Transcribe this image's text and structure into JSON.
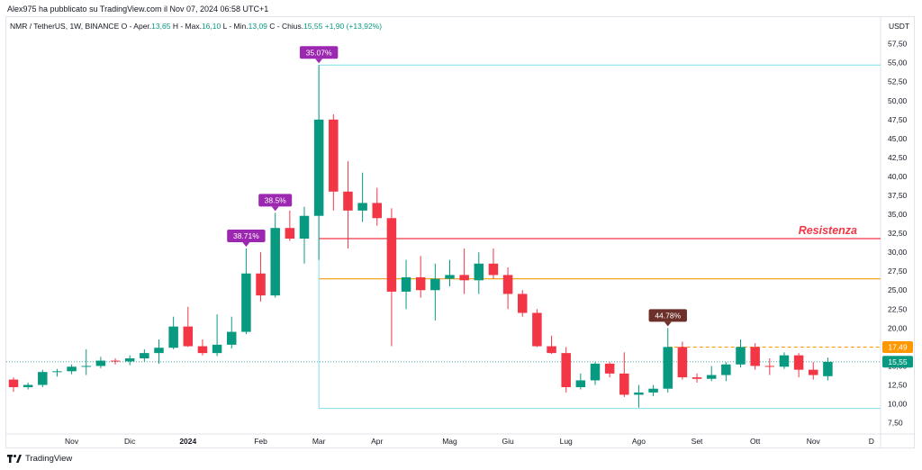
{
  "publisher": "Alex975 ha pubblicato su TradingView.com il Nov 07, 2024 06:58 UTC+1",
  "header": {
    "symbol": "NMR / TetherUS, 1W, BINANCE",
    "open_label": "O - Aper.",
    "open": "13,65",
    "high_label": "H - Max.",
    "high": "16,10",
    "low_label": "L - Min.",
    "low": "13,09",
    "close_label": "C - Chius.",
    "close": "15,55",
    "change": "+1,90 (+13,92%)"
  },
  "footer": {
    "brand": "TradingView"
  },
  "colors": {
    "up": "#089981",
    "down": "#f23645",
    "resistance": "#f23645",
    "orange_line": "#f5a623",
    "cyan_line": "#80deea",
    "label_purple": "#9c27b0",
    "label_brown": "#6d2f2a",
    "price_tag_current": "#089981",
    "price_tag_dashed": "#ff9800"
  },
  "chart_data": {
    "type": "candlestick",
    "ylabel": "USDT",
    "ylim": [
      6.5,
      59
    ],
    "y_ticks": [
      7.5,
      10,
      12.5,
      15,
      17.5,
      20,
      22.5,
      25,
      27.5,
      30,
      32.5,
      35,
      37.5,
      40,
      42.5,
      45,
      47.5,
      50,
      52.5,
      55,
      57.5
    ],
    "y_tick_labels": [
      "7,50",
      "10,00",
      "12,50",
      "15,00",
      "17,50",
      "20,00",
      "22,50",
      "25,00",
      "27,50",
      "30,00",
      "32,50",
      "35,00",
      "37,50",
      "40,00",
      "42,50",
      "45,00",
      "47,50",
      "50,00",
      "52,50",
      "55,00",
      "57,50"
    ],
    "x_labels": [
      {
        "label": "Nov",
        "index": 4
      },
      {
        "label": "Dic",
        "index": 8
      },
      {
        "label": "2024",
        "index": 12
      },
      {
        "label": "Feb",
        "index": 17
      },
      {
        "label": "Mar",
        "index": 21
      },
      {
        "label": "Apr",
        "index": 25
      },
      {
        "label": "Mag",
        "index": 30
      },
      {
        "label": "Giu",
        "index": 34
      },
      {
        "label": "Lug",
        "index": 38
      },
      {
        "label": "Ago",
        "index": 43
      },
      {
        "label": "Set",
        "index": 47
      },
      {
        "label": "Ott",
        "index": 51
      },
      {
        "label": "Nov",
        "index": 55
      },
      {
        "label": "D",
        "index": 59
      }
    ],
    "candles": [
      {
        "o": 13.2,
        "h": 13.5,
        "l": 11.6,
        "c": 12.2
      },
      {
        "o": 12.2,
        "h": 12.8,
        "l": 11.9,
        "c": 12.5
      },
      {
        "o": 12.5,
        "h": 14.5,
        "l": 12.2,
        "c": 14.2
      },
      {
        "o": 14.2,
        "h": 14.6,
        "l": 13.6,
        "c": 14.3
      },
      {
        "o": 14.3,
        "h": 15.2,
        "l": 13.9,
        "c": 14.9
      },
      {
        "o": 14.9,
        "h": 17.2,
        "l": 13.8,
        "c": 15.0
      },
      {
        "o": 15.0,
        "h": 16.2,
        "l": 14.7,
        "c": 15.7
      },
      {
        "o": 15.7,
        "h": 16.0,
        "l": 15.2,
        "c": 15.6
      },
      {
        "o": 15.6,
        "h": 16.4,
        "l": 15.1,
        "c": 16.0
      },
      {
        "o": 16.0,
        "h": 17.2,
        "l": 15.6,
        "c": 16.7
      },
      {
        "o": 16.7,
        "h": 18.5,
        "l": 15.3,
        "c": 17.4
      },
      {
        "o": 17.4,
        "h": 21.5,
        "l": 17.2,
        "c": 20.2
      },
      {
        "o": 20.2,
        "h": 22.8,
        "l": 17.5,
        "c": 17.6
      },
      {
        "o": 17.6,
        "h": 18.5,
        "l": 16.4,
        "c": 16.7
      },
      {
        "o": 16.7,
        "h": 21.8,
        "l": 16.3,
        "c": 17.8
      },
      {
        "o": 17.8,
        "h": 21.5,
        "l": 17.3,
        "c": 19.5
      },
      {
        "o": 19.5,
        "h": 30.5,
        "l": 19.2,
        "c": 27.2
      },
      {
        "o": 27.2,
        "h": 30.0,
        "l": 23.5,
        "c": 24.3
      },
      {
        "o": 24.3,
        "h": 35.2,
        "l": 24.0,
        "c": 33.2
      },
      {
        "o": 33.2,
        "h": 35.5,
        "l": 31.5,
        "c": 31.8
      },
      {
        "o": 31.8,
        "h": 36.0,
        "l": 28.5,
        "c": 34.8
      },
      {
        "o": 34.8,
        "h": 54.7,
        "l": 29.0,
        "c": 47.5
      },
      {
        "o": 47.5,
        "h": 48.2,
        "l": 35.5,
        "c": 38.0
      },
      {
        "o": 38.0,
        "h": 42.0,
        "l": 30.5,
        "c": 35.5
      },
      {
        "o": 35.5,
        "h": 40.5,
        "l": 34.0,
        "c": 36.5
      },
      {
        "o": 36.5,
        "h": 38.5,
        "l": 33.5,
        "c": 34.5
      },
      {
        "o": 34.5,
        "h": 35.8,
        "l": 17.6,
        "c": 24.8
      },
      {
        "o": 24.8,
        "h": 29.0,
        "l": 22.5,
        "c": 26.7
      },
      {
        "o": 26.7,
        "h": 29.5,
        "l": 24.0,
        "c": 25.0
      },
      {
        "o": 25.0,
        "h": 28.5,
        "l": 21.0,
        "c": 26.5
      },
      {
        "o": 26.5,
        "h": 29.0,
        "l": 25.5,
        "c": 27.0
      },
      {
        "o": 27.0,
        "h": 30.5,
        "l": 24.5,
        "c": 26.3
      },
      {
        "o": 26.3,
        "h": 30.0,
        "l": 24.5,
        "c": 28.5
      },
      {
        "o": 28.5,
        "h": 30.5,
        "l": 26.5,
        "c": 27.0
      },
      {
        "o": 27.0,
        "h": 28.0,
        "l": 22.5,
        "c": 24.5
      },
      {
        "o": 24.5,
        "h": 25.0,
        "l": 21.5,
        "c": 22.0
      },
      {
        "o": 22.0,
        "h": 22.5,
        "l": 17.5,
        "c": 17.6
      },
      {
        "o": 17.6,
        "h": 19.0,
        "l": 16.6,
        "c": 16.7
      },
      {
        "o": 16.7,
        "h": 17.5,
        "l": 11.5,
        "c": 12.2
      },
      {
        "o": 12.2,
        "h": 14.0,
        "l": 11.9,
        "c": 13.1
      },
      {
        "o": 13.1,
        "h": 15.5,
        "l": 12.5,
        "c": 15.3
      },
      {
        "o": 15.3,
        "h": 15.5,
        "l": 13.5,
        "c": 14.0
      },
      {
        "o": 14.0,
        "h": 16.8,
        "l": 10.9,
        "c": 11.2
      },
      {
        "o": 11.2,
        "h": 12.5,
        "l": 9.5,
        "c": 11.5
      },
      {
        "o": 11.5,
        "h": 12.5,
        "l": 11.0,
        "c": 12.0
      },
      {
        "o": 12.0,
        "h": 20.0,
        "l": 11.5,
        "c": 17.5
      },
      {
        "o": 17.5,
        "h": 18.2,
        "l": 13.2,
        "c": 13.5
      },
      {
        "o": 13.5,
        "h": 14.0,
        "l": 12.8,
        "c": 13.3
      },
      {
        "o": 13.3,
        "h": 15.0,
        "l": 13.0,
        "c": 13.8
      },
      {
        "o": 13.8,
        "h": 15.5,
        "l": 13.0,
        "c": 15.2
      },
      {
        "o": 15.2,
        "h": 18.5,
        "l": 14.8,
        "c": 17.5
      },
      {
        "o": 17.5,
        "h": 18.0,
        "l": 14.5,
        "c": 15.0
      },
      {
        "o": 15.0,
        "h": 16.0,
        "l": 13.8,
        "c": 14.9
      },
      {
        "o": 14.9,
        "h": 16.8,
        "l": 14.6,
        "c": 16.4
      },
      {
        "o": 16.4,
        "h": 16.7,
        "l": 13.5,
        "c": 14.5
      },
      {
        "o": 14.5,
        "h": 15.5,
        "l": 13.2,
        "c": 13.8
      },
      {
        "o": 13.65,
        "h": 16.1,
        "l": 13.09,
        "c": 15.55
      }
    ],
    "annotations": [
      {
        "text": "35.07%",
        "index": 21,
        "price": 54.7,
        "color": "purple"
      },
      {
        "text": "38.5%",
        "index": 18,
        "price": 35.2,
        "color": "purple"
      },
      {
        "text": "38.71%",
        "index": 16,
        "price": 30.5,
        "color": "purple"
      },
      {
        "text": "44.78%",
        "index": 45,
        "price": 20.0,
        "color": "brown"
      }
    ],
    "hlines": [
      {
        "price": 54.7,
        "from_index": 21,
        "color": "cyan"
      },
      {
        "price": 9.4,
        "from_index": 21,
        "color": "cyan"
      },
      {
        "price": 31.8,
        "from_index": 21,
        "color": "resistance",
        "label": "Resistenza"
      },
      {
        "price": 26.5,
        "from_index": 21,
        "color": "orange"
      },
      {
        "price": 17.49,
        "from_index": 45,
        "color": "orange_dashed"
      },
      {
        "price": 15.55,
        "from_index": 0,
        "color": "cyan_dotted"
      }
    ],
    "price_tags": [
      {
        "text": "17,49",
        "price": 17.49,
        "color": "orange"
      },
      {
        "text": "15,55",
        "price": 15.55,
        "color": "green"
      }
    ]
  }
}
